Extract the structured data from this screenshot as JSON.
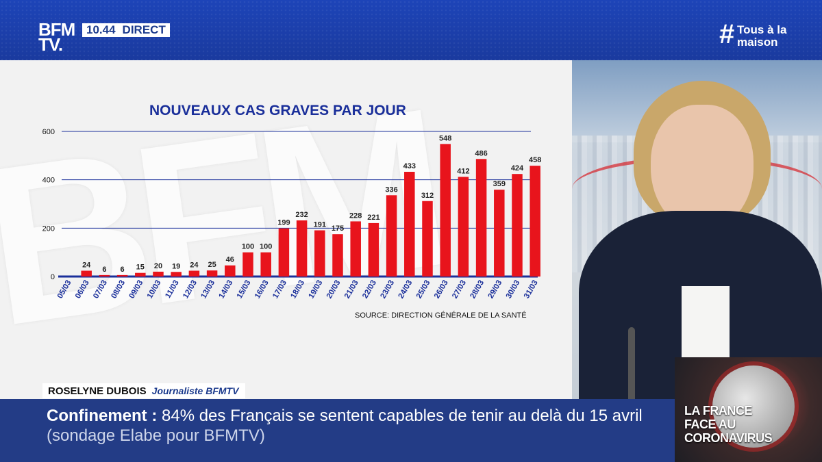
{
  "header": {
    "logo_line1": "BFM",
    "logo_line2": "TV.",
    "clock": "10.44",
    "live_label": "DIRECT",
    "hashtag_symbol": "#",
    "hashtag_line1": "Tous à la",
    "hashtag_line2": "maison"
  },
  "chart_data": {
    "type": "bar",
    "title": "NOUVEAUX CAS GRAVES PAR JOUR",
    "source": "SOURCE: DIRECTION GÉNÉRALE DE LA SANTÉ",
    "categories": [
      "05/03",
      "06/03",
      "07/03",
      "08/03",
      "09/03",
      "10/03",
      "11/03",
      "12/03",
      "13/03",
      "14/03",
      "15/03",
      "16/03",
      "17/03",
      "18/03",
      "19/03",
      "20/03",
      "21/03",
      "22/03",
      "23/03",
      "24/03",
      "25/03",
      "26/03",
      "27/03",
      "28/03",
      "29/03",
      "30/03",
      "31/03"
    ],
    "values": [
      0,
      24,
      6,
      6,
      15,
      20,
      19,
      24,
      25,
      46,
      100,
      100,
      199,
      232,
      191,
      175,
      228,
      221,
      336,
      433,
      312,
      548,
      412,
      486,
      359,
      424,
      458
    ],
    "value_labels": [
      "",
      "24",
      "6",
      "6",
      "15",
      "20",
      "19",
      "24",
      "25",
      "46",
      "100",
      "100",
      "199",
      "232",
      "191",
      "175",
      "228",
      "221",
      "336",
      "433",
      "312",
      "548",
      "412",
      "486",
      "359",
      "424",
      "458"
    ],
    "yticks": [
      0,
      200,
      400,
      600
    ],
    "ylim": [
      0,
      600
    ],
    "grid": true,
    "bar_color": "#e8141c",
    "axis_color": "#1a2f9a"
  },
  "lower_third": {
    "name": "ROSELYNE DUBOIS",
    "role": "Journaliste BFMTV",
    "topic": "Confinement :",
    "headline": "84% des Français se sentent capables de tenir au delà du 15 avril",
    "subtext": "(sondage Elabe pour BFMTV)"
  },
  "badge": {
    "line1": "LA FRANCE",
    "line2": "FACE AU",
    "line3": "CORONAVIRUS"
  }
}
